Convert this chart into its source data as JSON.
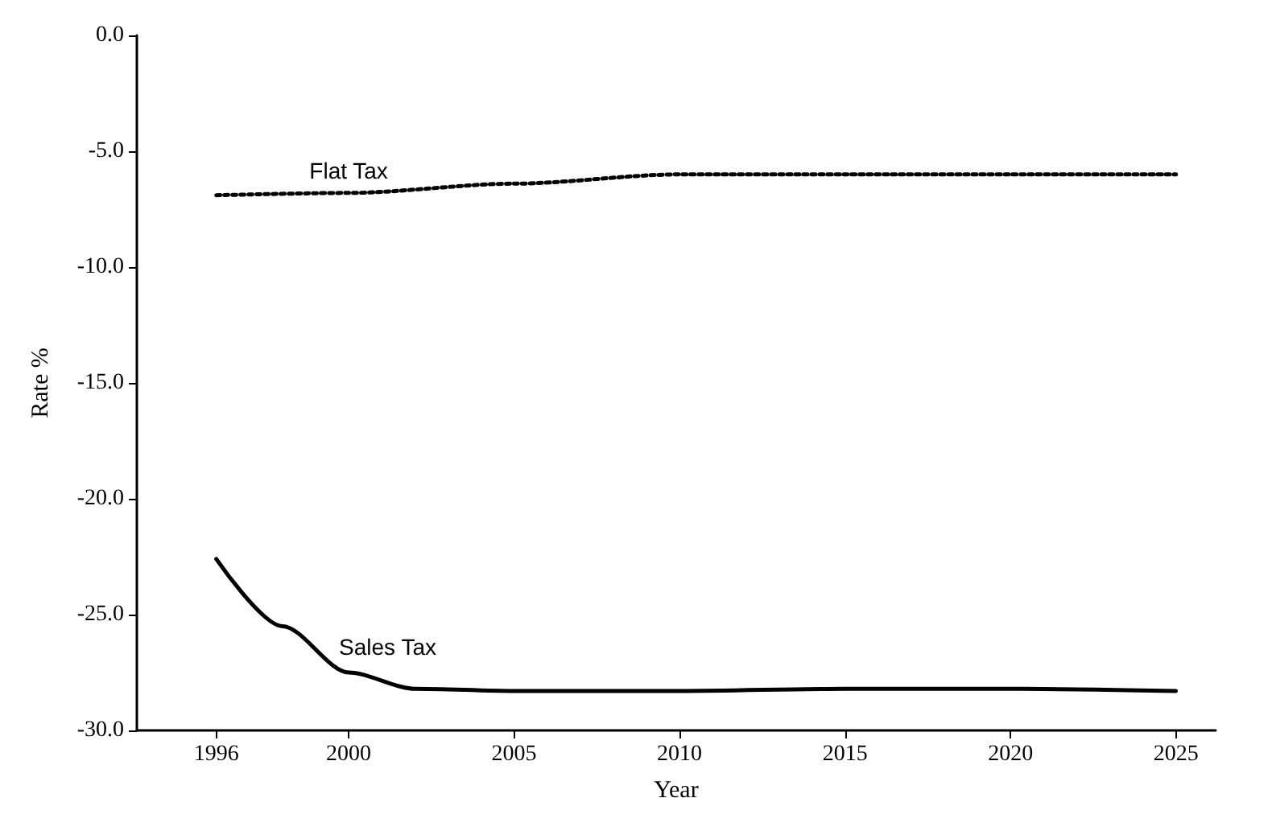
{
  "chart_data": {
    "type": "line",
    "xlabel": "Year",
    "ylabel": "Rate %",
    "xlim": [
      1993.6,
      2026.2
    ],
    "ylim": [
      -30,
      0
    ],
    "xticks": [
      1996,
      2000,
      2005,
      2010,
      2015,
      2020,
      2025
    ],
    "yticks": [
      {
        "value": 0,
        "label": "0.0"
      },
      {
        "value": -5,
        "label": "-5.0"
      },
      {
        "value": -10,
        "label": "-10.0"
      },
      {
        "value": -15,
        "label": "-15.0"
      },
      {
        "value": -20,
        "label": "-20.0"
      },
      {
        "value": -25,
        "label": "-25.0"
      },
      {
        "value": -30,
        "label": "-30.0"
      }
    ],
    "grid": false,
    "marker": "none",
    "series": [
      {
        "name": "Flat Tax",
        "color": "#000000",
        "line_style": "dotted",
        "x": [
          1996,
          2000,
          2005,
          2010,
          2015,
          2020,
          2025
        ],
        "values": [
          -6.9,
          -6.8,
          -6.4,
          -6.0,
          -6.0,
          -6.0,
          -6.0
        ]
      },
      {
        "name": "Sales Tax",
        "color": "#000000",
        "line_style": "solid",
        "x": [
          1996,
          1998,
          2000,
          2002,
          2005,
          2010,
          2015,
          2020,
          2025
        ],
        "values": [
          -22.6,
          -25.5,
          -27.5,
          -28.2,
          -28.3,
          -28.3,
          -28.2,
          -28.2,
          -28.3
        ]
      }
    ]
  }
}
